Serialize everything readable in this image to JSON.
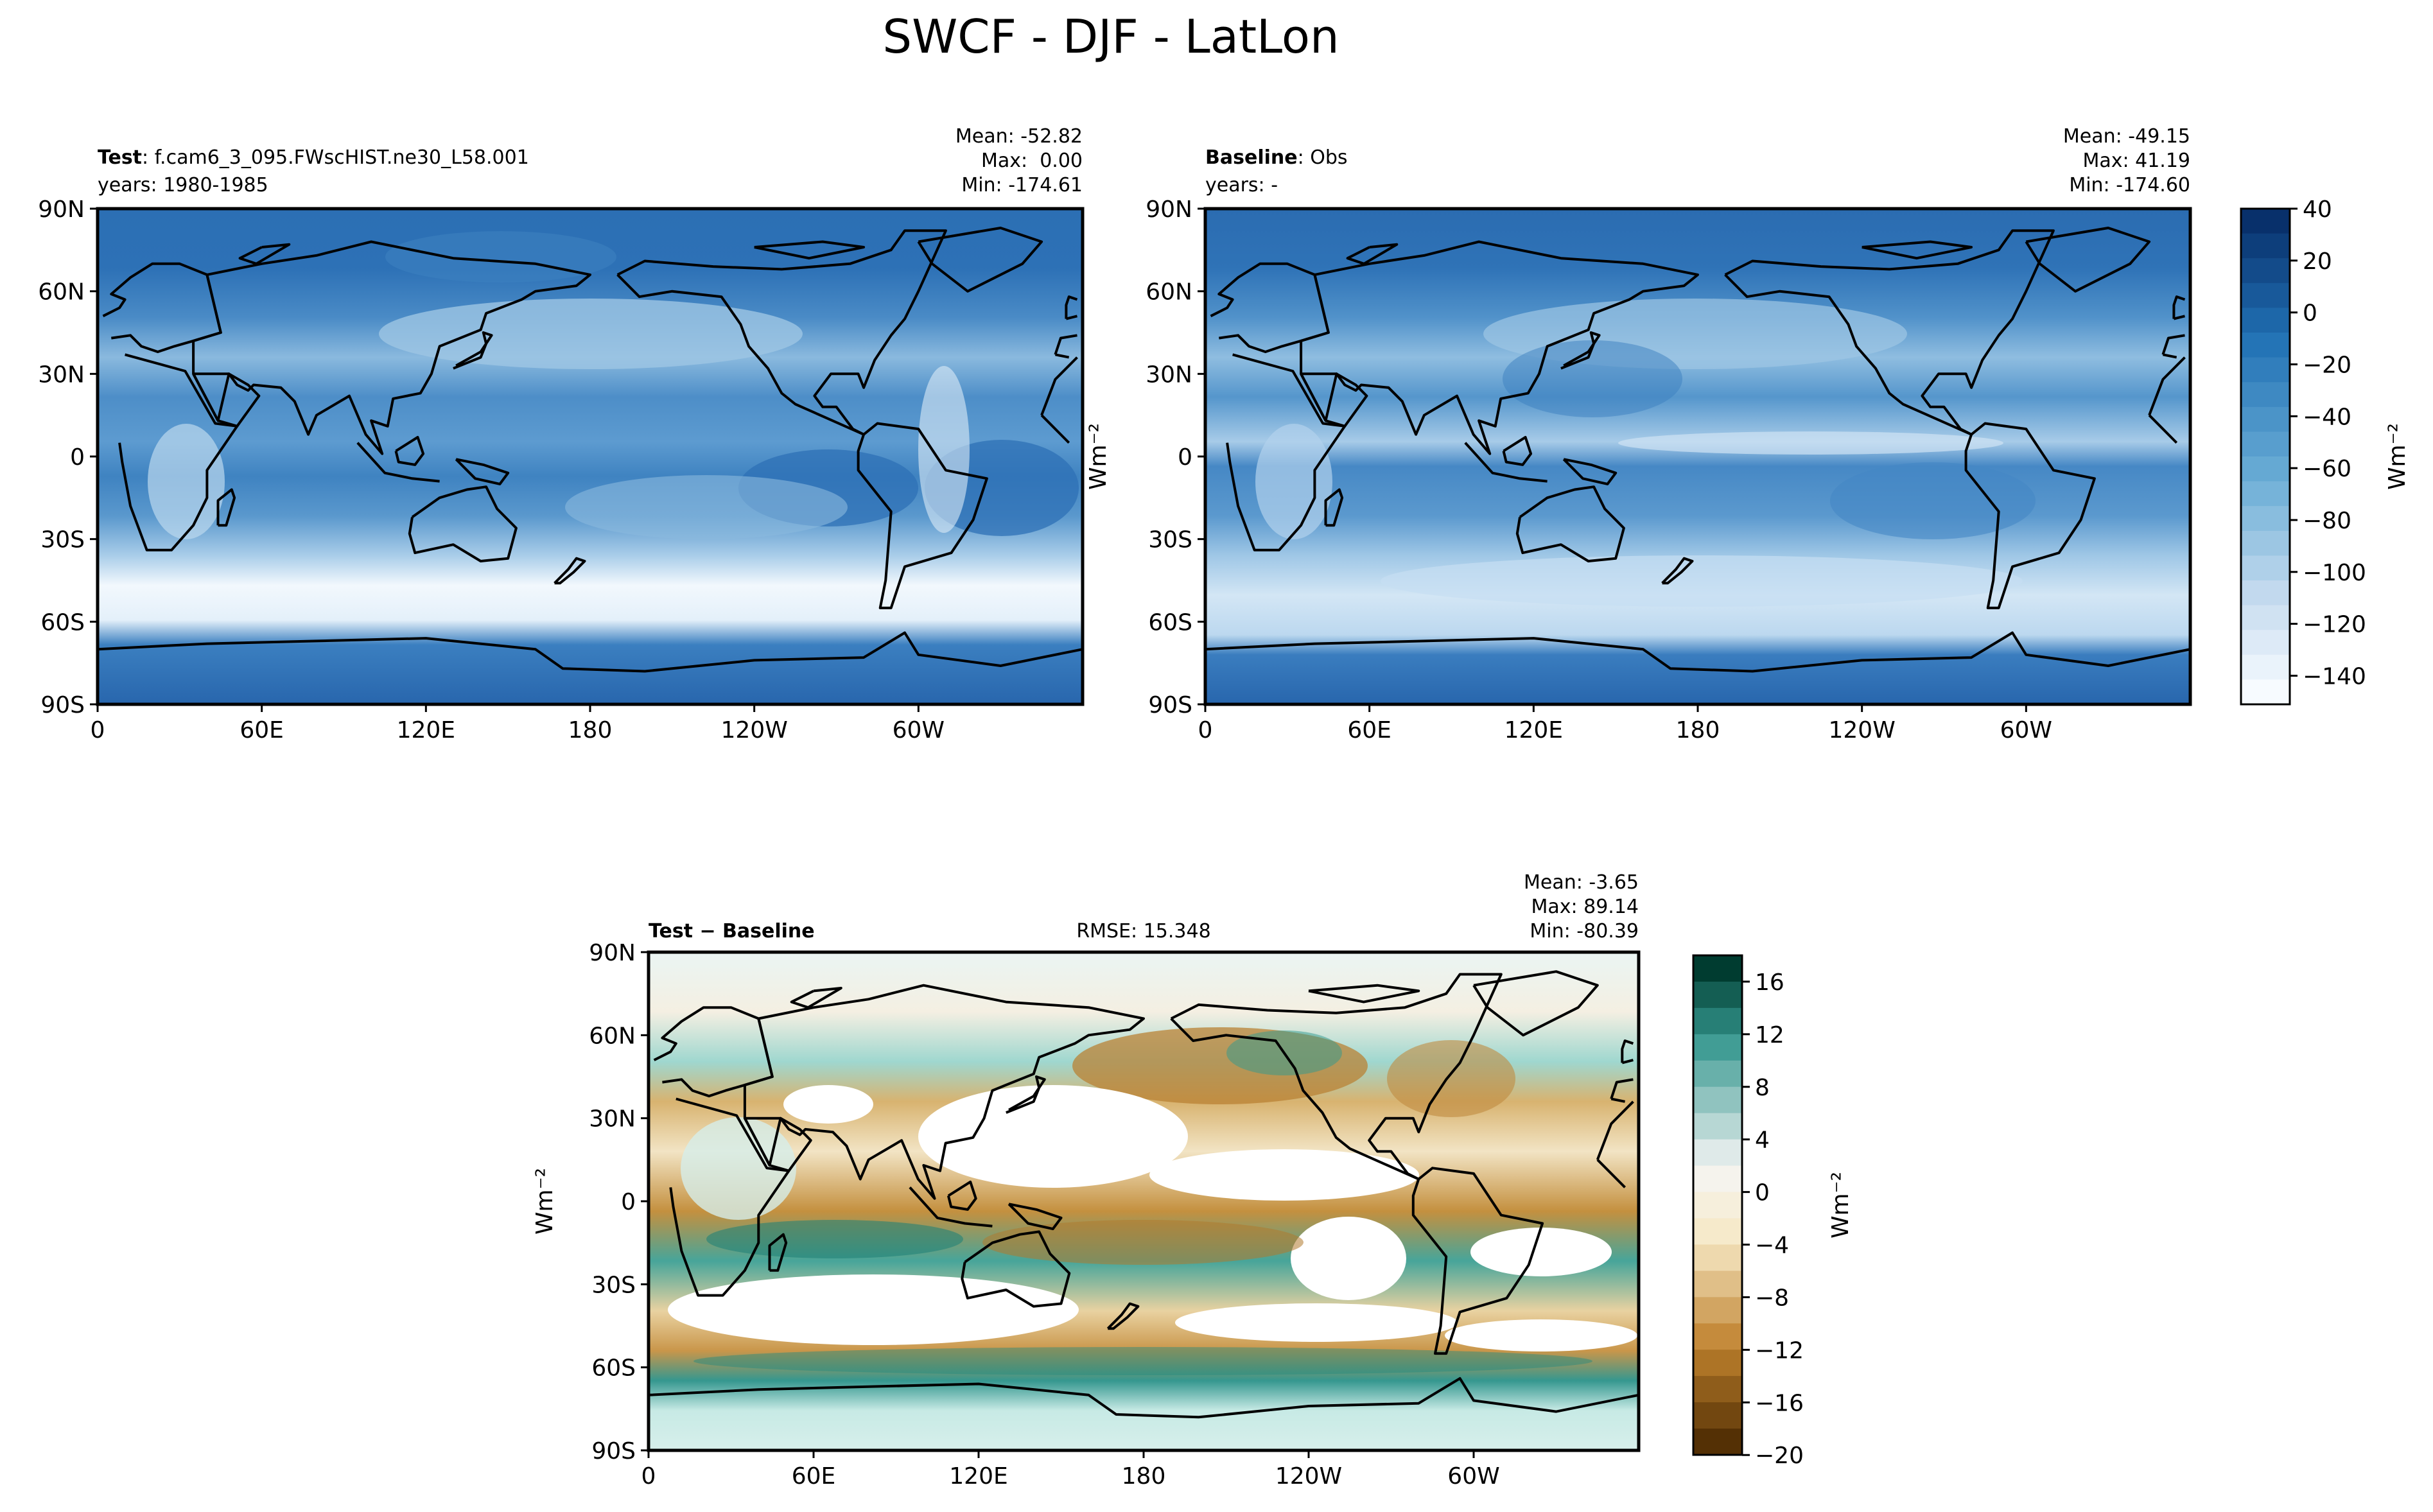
{
  "title": "SWCF - DJF - LatLon",
  "panels": {
    "test": {
      "label_bold": "Test",
      "label_rest": ": f.cam6_3_095.FWscHIST.ne30_L58.001",
      "years": "years: 1980-1985",
      "mean": "Mean: -52.82",
      "max": "Max:  0.00",
      "min": "Min: -174.61"
    },
    "baseline": {
      "label_bold": "Baseline",
      "label_rest": ": Obs",
      "years": "years: -",
      "mean": "Mean: -49.15",
      "max": "Max: 41.19",
      "min": "Min: -174.60"
    },
    "diff": {
      "label": "Test − Baseline",
      "rmse": "RMSE: 15.348",
      "mean": "Mean: -3.65",
      "max": "Max: 89.14",
      "min": "Min: -80.39"
    }
  },
  "axes": {
    "lat_ticks": [
      "90N",
      "60N",
      "30N",
      "0",
      "30S",
      "60S",
      "90S"
    ],
    "lon_ticks": [
      "0",
      "60E",
      "120E",
      "180",
      "120W",
      "60W"
    ]
  },
  "colorbars": {
    "main": {
      "label": "Wm⁻²",
      "ticks": [
        "40",
        "20",
        "0",
        "−20",
        "−40",
        "−60",
        "−80",
        "−100",
        "−120",
        "−140"
      ],
      "colormap": "Blues (reversed)",
      "range": [
        -150,
        45
      ]
    },
    "diff": {
      "label": "Wm⁻²",
      "ticks": [
        "16",
        "12",
        "8",
        "4",
        "0",
        "−4",
        "−8",
        "−12",
        "−16",
        "−20"
      ],
      "colormap": "BrBG",
      "range": [
        -20,
        18
      ]
    }
  },
  "ylabel": "Wm⁻²",
  "colors": {
    "blue_dark": "#08306b",
    "blue_mid": "#2f74b7",
    "blue_light": "#9cc3e0",
    "white": "#f4f9fe",
    "brown": "#8c5109",
    "teal": "#01665e"
  }
}
